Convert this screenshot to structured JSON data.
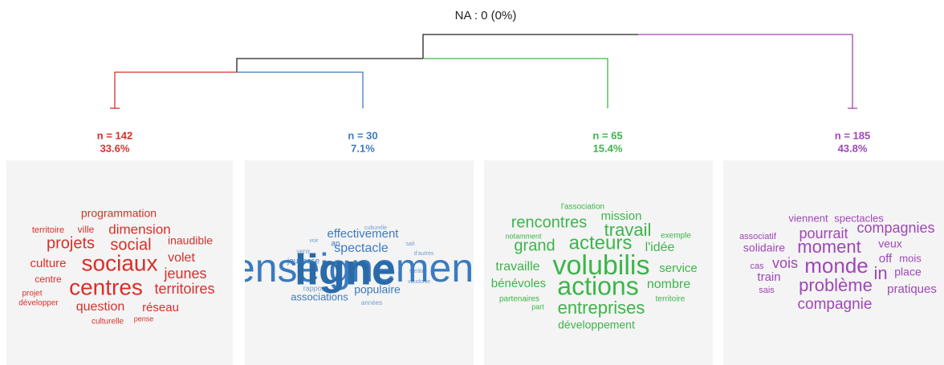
{
  "title": "NA : 0 (0%)",
  "clusters": [
    {
      "n": "n = 142",
      "pct": "33.6%",
      "color": "#d7302a",
      "words": [
        "programmation",
        "territoire",
        "ville",
        "dimension",
        "projets",
        "social",
        "inaudible",
        "culture",
        "sociaux",
        "volet",
        "jeunes",
        "centre",
        "centres",
        "territoires",
        "projet",
        "développer",
        "question",
        "réseau",
        "culturelle",
        "pense"
      ]
    },
    {
      "n": "n = 30",
      "pct": "7.1%",
      "color": "#3a7bbf",
      "words": [
        "enseignement",
        "ligne",
        "culturelle",
        "effectivement",
        "voir",
        "an",
        "spectacle",
        "sait",
        "venir",
        "d'autres",
        "jeunesse",
        "théâtre",
        "vaudoise",
        "rapport",
        "populaire",
        "associations",
        "années"
      ]
    },
    {
      "n": "n = 65",
      "pct": "15.4%",
      "color": "#3cb54a",
      "words": [
        "l'association",
        "mission",
        "rencontres",
        "travail",
        "notamment",
        "grand",
        "acteurs",
        "exemple",
        "l'idée",
        "travaille",
        "volubilis",
        "service",
        "bénévoles",
        "actions",
        "nombre",
        "partenaires",
        "territoire",
        "entreprises",
        "part",
        "développement"
      ]
    },
    {
      "n": "n = 185",
      "pct": "43.8%",
      "color": "#a046b8",
      "words": [
        "viennent",
        "spectacles",
        "compagnies",
        "associatif",
        "pourrait",
        "solidaire",
        "moment",
        "veux",
        "mois",
        "off",
        "cas",
        "vois",
        "monde",
        "in",
        "place",
        "train",
        "problème",
        "pratiques",
        "sais",
        "compagnie"
      ]
    }
  ]
}
